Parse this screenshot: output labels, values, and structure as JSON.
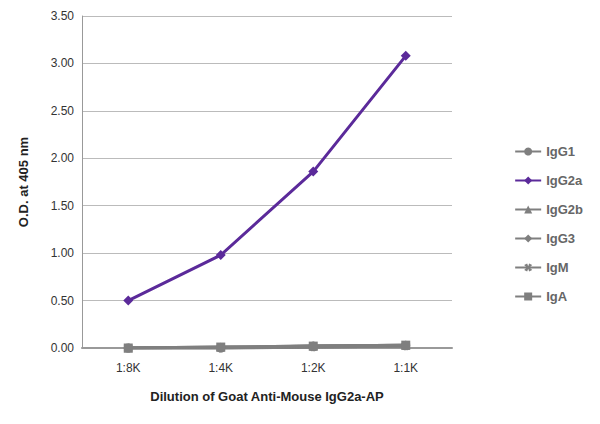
{
  "chart_data": {
    "type": "line",
    "x_label": "Dilution of Goat Anti-Mouse IgG2a-AP",
    "y_label": "O.D. at 405 nm",
    "categories": [
      "1:8K",
      "1:4K",
      "1:2K",
      "1:1K"
    ],
    "series": [
      {
        "name": "IgG1",
        "color": "#7f7f7f",
        "marker": "circle",
        "values": [
          0.0,
          0.0,
          0.02,
          0.03
        ]
      },
      {
        "name": "IgG2a",
        "color": "#5b2a9a",
        "marker": "diamond",
        "values": [
          0.5,
          0.98,
          1.86,
          3.08
        ]
      },
      {
        "name": "IgG2b",
        "color": "#7f7f7f",
        "marker": "triangle",
        "values": [
          0.0,
          0.01,
          0.02,
          0.03
        ]
      },
      {
        "name": "IgG3",
        "color": "#7f7f7f",
        "marker": "diamond",
        "values": [
          0.0,
          0.0,
          0.01,
          0.02
        ]
      },
      {
        "name": "IgM",
        "color": "#7f7f7f",
        "marker": "x",
        "values": [
          0.0,
          0.0,
          0.01,
          0.02
        ]
      },
      {
        "name": "IgA",
        "color": "#7f7f7f",
        "marker": "square",
        "values": [
          0.0,
          0.01,
          0.02,
          0.03
        ]
      }
    ],
    "ylim": [
      0,
      3.5
    ],
    "yticks": [
      {
        "value": 0,
        "label": "0.00"
      },
      {
        "value": 0.5,
        "label": "0.50"
      },
      {
        "value": 1,
        "label": "1.00"
      },
      {
        "value": 1.5,
        "label": "1.50"
      },
      {
        "value": 2,
        "label": "2.00"
      },
      {
        "value": 2.5,
        "label": "2.50"
      },
      {
        "value": 3,
        "label": "3.00"
      },
      {
        "value": 3.5,
        "label": "3.50"
      }
    ],
    "grid": true,
    "legend": "right"
  }
}
